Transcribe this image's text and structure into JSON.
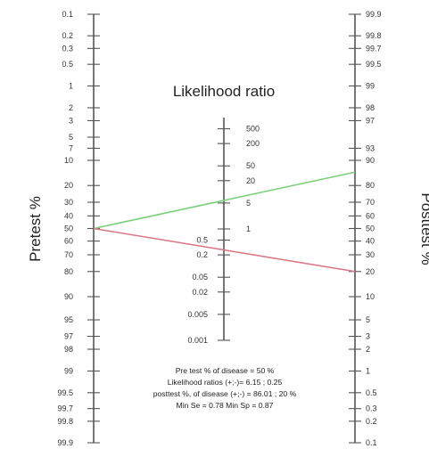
{
  "chart_data": {
    "type": "nomogram",
    "title": "Likelihood ratio",
    "pretest_axis": {
      "label": "Pretest %",
      "ticks": [
        "0.1",
        "0.2",
        "0.3",
        "0.5",
        "1",
        "2",
        "3",
        "5",
        "7",
        "10",
        "20",
        "30",
        "40",
        "50",
        "60",
        "70",
        "80",
        "90",
        "95",
        "97",
        "98",
        "99",
        "99.5",
        "99.7",
        "99.8",
        "99.9"
      ]
    },
    "likelihood_axis": {
      "label": "Likelihood ratio",
      "ticks": [
        "500",
        "200",
        "50",
        "20",
        "5",
        "1",
        "0.5",
        "0.2",
        "0.05",
        "0.02",
        "0.005",
        "0.001"
      ]
    },
    "posttest_axis": {
      "label": "Posttest %",
      "ticks": [
        "99.9",
        "99.8",
        "99.7",
        "99.5",
        "99",
        "98",
        "97",
        "93",
        "90",
        "80",
        "70",
        "60",
        "50",
        "40",
        "30",
        "20",
        "10",
        "5",
        "3",
        "2",
        "1",
        "0.5",
        "0.3",
        "0.2",
        "0.1"
      ]
    },
    "lines": [
      {
        "pretest": 50,
        "likelihood_ratio": 6.15,
        "posttest": 86.01,
        "color": "#7dd17d"
      },
      {
        "pretest": 50,
        "likelihood_ratio": 0.25,
        "posttest": 20,
        "color": "#d97a86"
      }
    ],
    "summary": [
      "Pre test % of disease = 50 %",
      "Likelihood ratios (+;-)= 6.15 ; 0.25",
      "posttest %, of disease (+;-) = 86.01 ; 20 %",
      "Min Se = 0.78 Min Sp = 0.87"
    ]
  }
}
